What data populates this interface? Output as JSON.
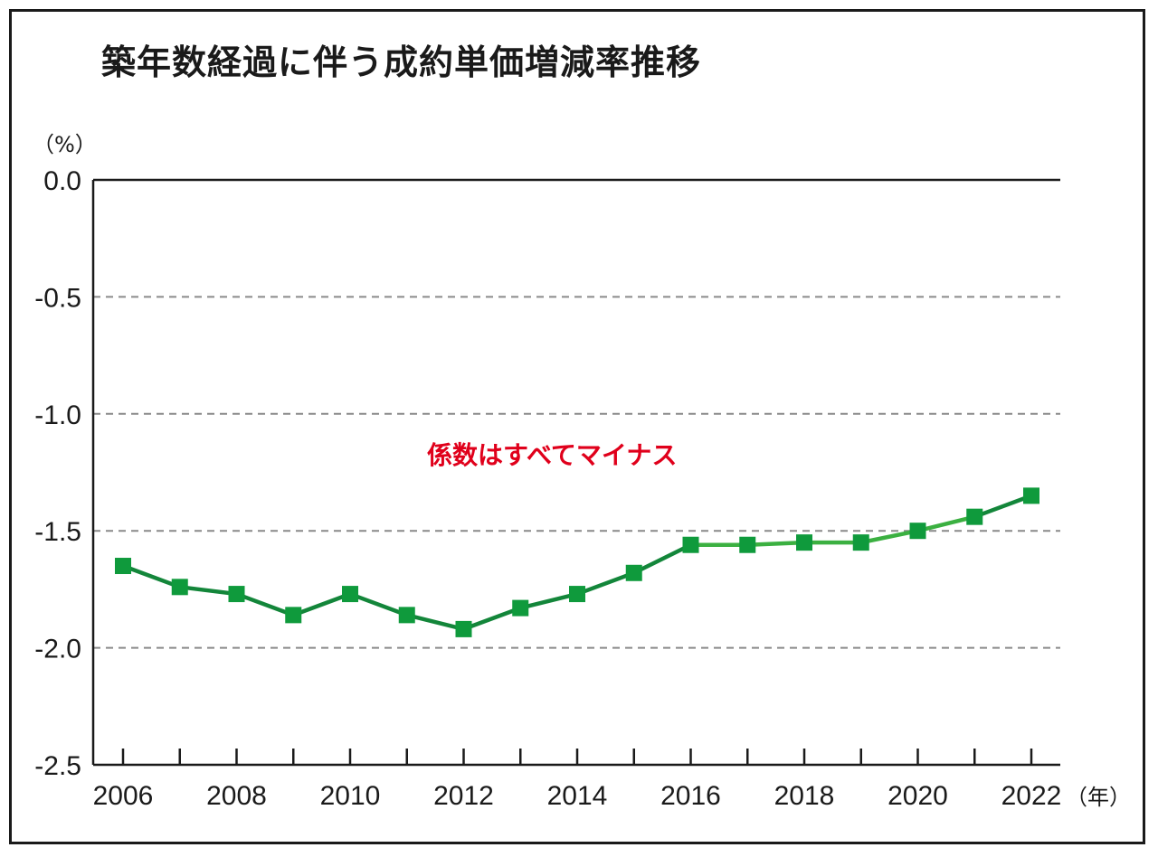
{
  "chart_data": {
    "type": "line",
    "title": "築年数経過に伴う成約単価増減率推移",
    "y_unit_label": "（%）",
    "x_unit_label": "（年）",
    "annotation": "係数はすべてマイナス",
    "x": [
      2006,
      2007,
      2008,
      2009,
      2010,
      2011,
      2012,
      2013,
      2014,
      2015,
      2016,
      2017,
      2018,
      2019,
      2020,
      2021,
      2022
    ],
    "x_tick_labels": [
      "2006",
      "2008",
      "2010",
      "2012",
      "2014",
      "2016",
      "2018",
      "2020",
      "2022"
    ],
    "y_tick_labels": [
      "0.0",
      "-0.5",
      "-1.0",
      "-1.5",
      "-2.0",
      "-2.5"
    ],
    "y_ticks": [
      0.0,
      -0.5,
      -1.0,
      -1.5,
      -2.0,
      -2.5
    ],
    "ylim": [
      -2.5,
      0.0
    ],
    "grid": "dashed horizontal",
    "series": [
      {
        "values": [
          -1.65,
          -1.74,
          -1.77,
          -1.86,
          -1.77,
          -1.86,
          -1.92,
          -1.83,
          -1.77,
          -1.68,
          -1.56,
          -1.56,
          -1.55,
          -1.55,
          -1.5,
          -1.44,
          -1.35
        ]
      }
    ],
    "colors": {
      "line_dark": "#13863a",
      "line_light": "#3bb041",
      "marker": "#0f9a3c",
      "annotation": "#e0001b",
      "grid": "#8a8a8a"
    }
  }
}
